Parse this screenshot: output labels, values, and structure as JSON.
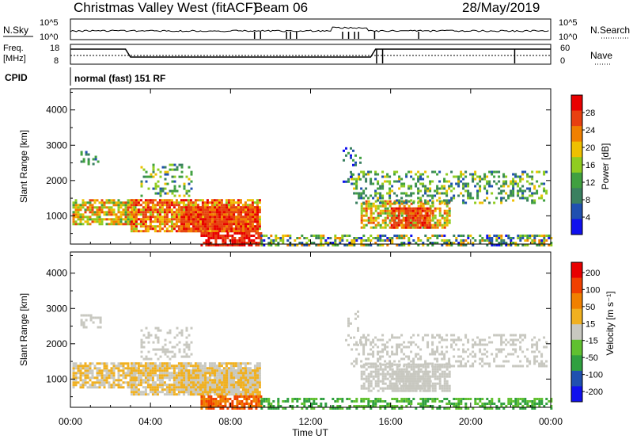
{
  "header": {
    "station": "Christmas Valley West (fitACF)",
    "beam": "Beam 06",
    "date": "28/May/2019"
  },
  "top_panel": {
    "left_label": "N.Sky",
    "right_label": "N.Search",
    "left_ticks": [
      "10^5",
      "10^0"
    ],
    "right_ticks": [
      "10^5",
      "10^0"
    ]
  },
  "freq_panel": {
    "left_label_line1": "Freq.",
    "left_label_line2": "[MHz]",
    "right_label": "Nave",
    "left_ticks": [
      "18",
      "8"
    ],
    "right_ticks": [
      "60",
      "0"
    ]
  },
  "cpid": {
    "label": "CPID",
    "value": "normal (fast) 151 RF"
  },
  "colors": {
    "power": [
      "#1010ee",
      "#2050b0",
      "#3a8060",
      "#40a040",
      "#90cc20",
      "#eec000",
      "#f08000",
      "#e84010",
      "#e80000"
    ],
    "velocity": [
      "#e80000",
      "#f04000",
      "#f08000",
      "#f0b020",
      "#c8c8c0",
      "#60c030",
      "#30a040",
      "#2050b0",
      "#1010ee"
    ]
  },
  "chart_data": [
    {
      "type": "heatmap",
      "name": "Power",
      "ylabel": "Slant Range [km]",
      "y_ticks": [
        "1000",
        "2000",
        "3000",
        "4000"
      ],
      "y_tick_values": [
        1000,
        2000,
        3000,
        4000
      ],
      "ylim": [
        200,
        4600
      ],
      "colorbar_label": "Power [dB]",
      "colorbar_ticks": [
        "4",
        "8",
        "12",
        "16",
        "20",
        "24",
        "28"
      ],
      "colorbar_range": [
        0,
        32
      ]
    },
    {
      "type": "heatmap",
      "name": "Velocity",
      "ylabel": "Slant Range [km]",
      "y_ticks": [
        "1000",
        "2000",
        "3000",
        "4000"
      ],
      "y_tick_values": [
        1000,
        2000,
        3000,
        4000
      ],
      "ylim": [
        200,
        4600
      ],
      "colorbar_label": "Velocity [m s⁻¹]",
      "colorbar_ticks": [
        "200",
        "100",
        "50",
        "15",
        "-15",
        "-50",
        "-100",
        "-200"
      ]
    }
  ],
  "x_axis": {
    "label": "Time UT",
    "ticks": [
      "00:00",
      "04:00",
      "08:00",
      "12:00",
      "16:00",
      "20:00",
      "00:00"
    ]
  }
}
